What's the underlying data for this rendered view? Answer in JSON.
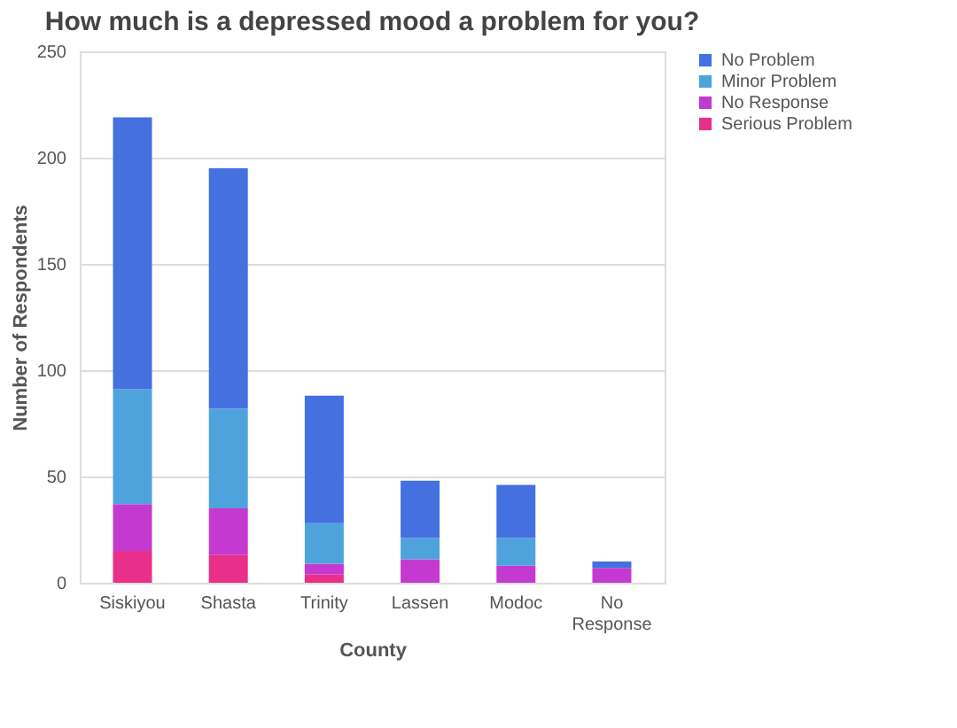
{
  "chart_data": {
    "type": "bar",
    "title": "How much is a depressed mood a problem for you?",
    "xlabel": "County",
    "ylabel": "Number of Respondents",
    "categories": [
      "Siskiyou",
      "Shasta",
      "Trinity",
      "Lassen",
      "Modoc",
      "No Response"
    ],
    "stacked": true,
    "series": [
      {
        "name": "Serious Problem",
        "color": "#e8308a",
        "values": [
          15,
          13,
          4,
          0,
          0,
          0
        ]
      },
      {
        "name": "No Response",
        "color": "#c43ad0",
        "values": [
          22,
          22,
          5,
          11,
          8,
          7
        ]
      },
      {
        "name": "Minor Problem",
        "color": "#4fa3dc",
        "values": [
          54,
          47,
          19,
          10,
          13,
          0
        ]
      },
      {
        "name": "No Problem",
        "color": "#4570e0",
        "values": [
          128,
          113,
          60,
          27,
          25,
          3
        ]
      }
    ],
    "ylim": [
      0,
      250
    ],
    "yticks": [
      0,
      50,
      100,
      150,
      200,
      250
    ],
    "grid": "y",
    "legend": "right"
  }
}
